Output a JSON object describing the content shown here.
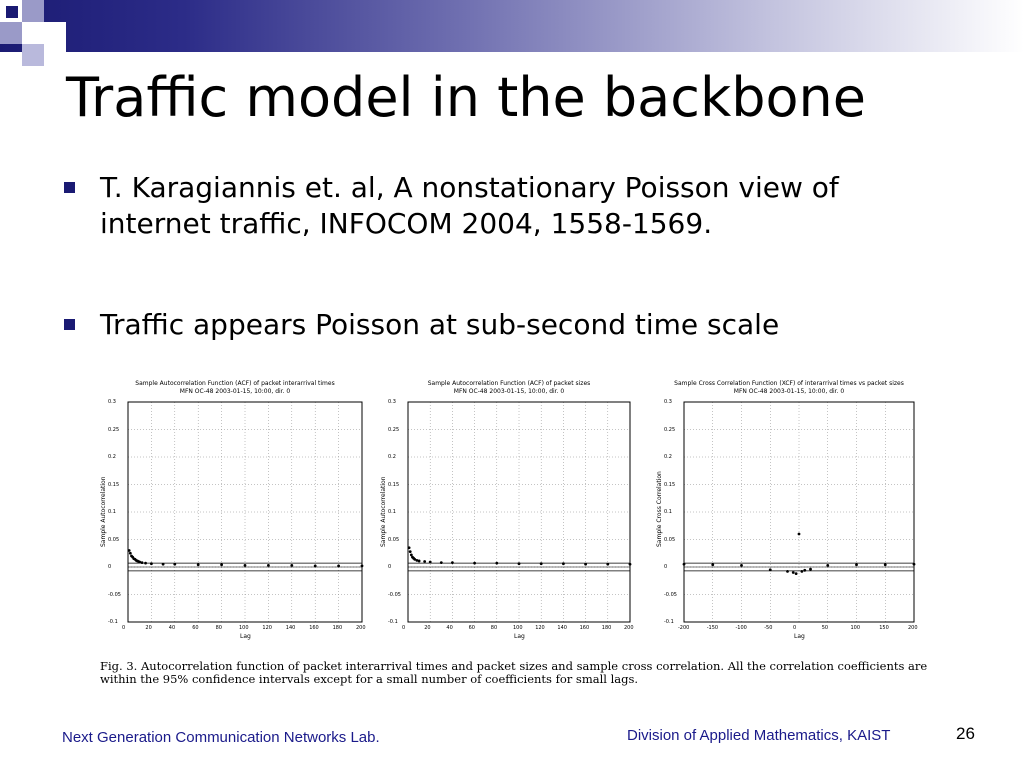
{
  "slide": {
    "title": "Traffic model in the backbone",
    "bullets": [
      "T. Karagiannis et. al, A nonstationary Poisson view of internet traffic, INFOCOM 2004, 1558-1569.",
      "Traffic appears Poisson at sub-second time scale"
    ],
    "footer_left": "Next Generation Communication Networks Lab.",
    "footer_right": "Division of Applied Mathematics, KAIST",
    "page_number": "26"
  },
  "colors": {
    "accent": "#1a1a73",
    "footer_text": "#1a1a8a"
  },
  "figure": {
    "caption_line1": "Fig. 3.   Autocorrelation function of packet interarrival times and packet sizes and sample cross correlation.  All the correlation coefficients are",
    "caption_line2": "within the 95% confidence intervals except for a small number of coefficients for small lags."
  },
  "chart_data": [
    {
      "type": "scatter",
      "title": "Sample Autocorrelation Function (ACF) of packet interarrival times",
      "subtitle": "MFN OC-48 2003-01-15, 10:00, dir. 0",
      "xlabel": "Lag",
      "ylabel": "Sample Autocorrelation",
      "xlim": [
        0,
        200
      ],
      "ylim": [
        -0.1,
        0.3
      ],
      "xticks": [
        "0",
        "20",
        "40",
        "60",
        "80",
        "100",
        "120",
        "140",
        "160",
        "180",
        "200"
      ],
      "yticks": [
        "-0.1",
        "-0.05",
        "0",
        "0.05",
        "0.1",
        "0.15",
        "0.2",
        "0.25",
        "0.3"
      ],
      "confidence_band": 0.007,
      "series": [
        {
          "x": [
            1,
            2,
            3,
            4,
            5,
            6,
            7,
            8,
            9,
            10,
            12,
            15,
            20,
            30,
            40,
            60,
            80,
            100,
            120,
            140,
            160,
            180,
            200
          ],
          "values": [
            0.03,
            0.025,
            0.02,
            0.018,
            0.015,
            0.014,
            0.012,
            0.011,
            0.01,
            0.009,
            0.008,
            0.007,
            0.006,
            0.005,
            0.005,
            0.004,
            0.004,
            0.003,
            0.003,
            0.003,
            0.002,
            0.002,
            0.002
          ]
        }
      ]
    },
    {
      "type": "scatter",
      "title": "Sample Autocorrelation Function (ACF) of packet sizes",
      "subtitle": "MFN OC-48 2003-01-15, 10:00, dir. 0",
      "xlabel": "Lag",
      "ylabel": "Sample Autocorrelation",
      "xlim": [
        0,
        200
      ],
      "ylim": [
        -0.1,
        0.3
      ],
      "xticks": [
        "0",
        "20",
        "40",
        "60",
        "80",
        "100",
        "120",
        "140",
        "160",
        "180",
        "200"
      ],
      "yticks": [
        "-0.1",
        "-0.05",
        "0",
        "0.05",
        "0.1",
        "0.15",
        "0.2",
        "0.25",
        "0.3"
      ],
      "confidence_band": 0.007,
      "series": [
        {
          "x": [
            1,
            2,
            3,
            4,
            5,
            6,
            8,
            10,
            15,
            20,
            30,
            40,
            60,
            80,
            100,
            120,
            140,
            160,
            180,
            200
          ],
          "values": [
            0.035,
            0.028,
            0.022,
            0.018,
            0.016,
            0.014,
            0.012,
            0.011,
            0.01,
            0.009,
            0.008,
            0.008,
            0.007,
            0.007,
            0.006,
            0.006,
            0.006,
            0.005,
            0.005,
            0.005
          ]
        }
      ]
    },
    {
      "type": "scatter",
      "title": "Sample Cross Correlation Function (XCF) of interarrival times vs packet sizes",
      "subtitle": "MFN OC-48 2003-01-15, 10:00, dir. 0",
      "xlabel": "Lag",
      "ylabel": "Sample Cross Correlation",
      "xlim": [
        -200,
        200
      ],
      "ylim": [
        -0.1,
        0.3
      ],
      "xticks": [
        "-200",
        "-150",
        "-100",
        "-50",
        "0",
        "50",
        "100",
        "150",
        "200"
      ],
      "yticks": [
        "-0.1",
        "-0.05",
        "0",
        "0.05",
        "0.1",
        "0.15",
        "0.2",
        "0.25",
        "0.3"
      ],
      "confidence_band": 0.007,
      "series": [
        {
          "x": [
            -200,
            -150,
            -100,
            -50,
            -20,
            -10,
            -5,
            0,
            5,
            10,
            20,
            50,
            100,
            150,
            200
          ],
          "values": [
            0.005,
            0.004,
            0.003,
            -0.005,
            -0.008,
            -0.01,
            -0.012,
            0.06,
            -0.008,
            -0.006,
            -0.004,
            0.003,
            0.004,
            0.004,
            0.005
          ]
        }
      ]
    }
  ]
}
